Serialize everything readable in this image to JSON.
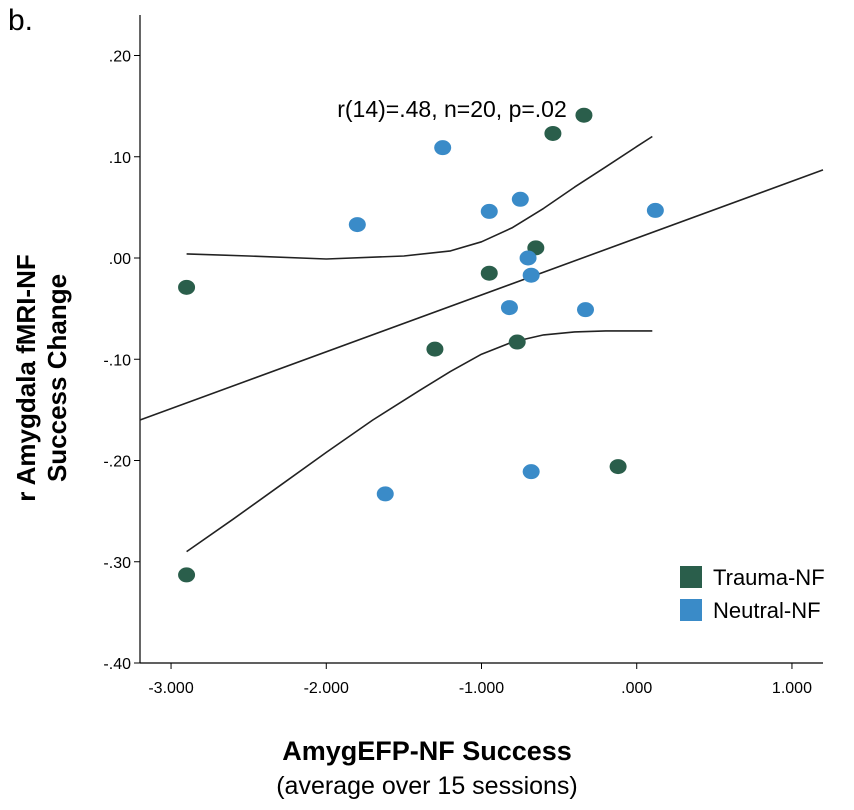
{
  "panel_label": "b.",
  "chart_data": {
    "type": "scatter",
    "xlabel": "AmygEFP-NF Success",
    "xlabel_sub": "(average over 15 sessions)",
    "ylabel_line1": "r Amygdala fMRI-NF",
    "ylabel_line2": "Success Change",
    "annotation": "r(14)=.48, n=20, p=.02",
    "xlim": [
      -3.2,
      1.2
    ],
    "ylim": [
      -0.4,
      0.24
    ],
    "x_ticks": [
      -3,
      -2,
      -1,
      0,
      1
    ],
    "x_tick_labels": [
      "-3.000",
      "-2.000",
      "-1.000",
      ".000",
      "1.000"
    ],
    "y_ticks": [
      -0.4,
      -0.3,
      -0.2,
      -0.1,
      0,
      0.1,
      0.2
    ],
    "y_tick_labels": [
      "-.40",
      "-.30",
      "-.20",
      "-.10",
      ".00",
      ".10",
      ".20"
    ],
    "legend_position": "bottom-right",
    "series": [
      {
        "name": "Trauma-NF",
        "color": "#2a5e4b",
        "points": [
          [
            -0.34,
            0.141
          ],
          [
            -0.54,
            0.123
          ],
          [
            -0.65,
            0.01
          ],
          [
            -0.95,
            -0.015
          ],
          [
            -2.9,
            -0.029
          ],
          [
            -1.3,
            -0.09
          ],
          [
            -0.77,
            -0.083
          ],
          [
            -0.12,
            -0.206
          ],
          [
            -2.9,
            -0.313
          ]
        ]
      },
      {
        "name": "Neutral-NF",
        "color": "#3a8bc8",
        "points": [
          [
            -1.25,
            0.109
          ],
          [
            0.12,
            0.047
          ],
          [
            -0.75,
            0.058
          ],
          [
            -0.95,
            0.046
          ],
          [
            -1.8,
            0.033
          ],
          [
            -0.7,
            0.0
          ],
          [
            -0.68,
            -0.017
          ],
          [
            -0.82,
            -0.049
          ],
          [
            -0.33,
            -0.051
          ],
          [
            -1.62,
            -0.233
          ],
          [
            -0.68,
            -0.211
          ]
        ]
      }
    ],
    "fit_line": {
      "x": [
        -3.2,
        1.2
      ],
      "y": [
        -0.16,
        0.087
      ]
    },
    "ci_upper": {
      "x": [
        -2.9,
        -2.5,
        -2.0,
        -1.5,
        -1.2,
        -1.0,
        -0.8,
        -0.6,
        -0.4,
        -0.2,
        0.0,
        0.1
      ],
      "y": [
        0.004,
        0.002,
        -0.001,
        0.002,
        0.007,
        0.016,
        0.03,
        0.049,
        0.07,
        0.09,
        0.11,
        0.12
      ]
    },
    "ci_lower": {
      "x": [
        -2.9,
        -2.6,
        -2.3,
        -2.0,
        -1.7,
        -1.4,
        -1.2,
        -1.0,
        -0.8,
        -0.6,
        -0.4,
        -0.2,
        0.0,
        0.1
      ],
      "y": [
        -0.29,
        -0.258,
        -0.225,
        -0.192,
        -0.16,
        -0.131,
        -0.112,
        -0.095,
        -0.083,
        -0.076,
        -0.073,
        -0.072,
        -0.072,
        -0.072
      ]
    }
  }
}
